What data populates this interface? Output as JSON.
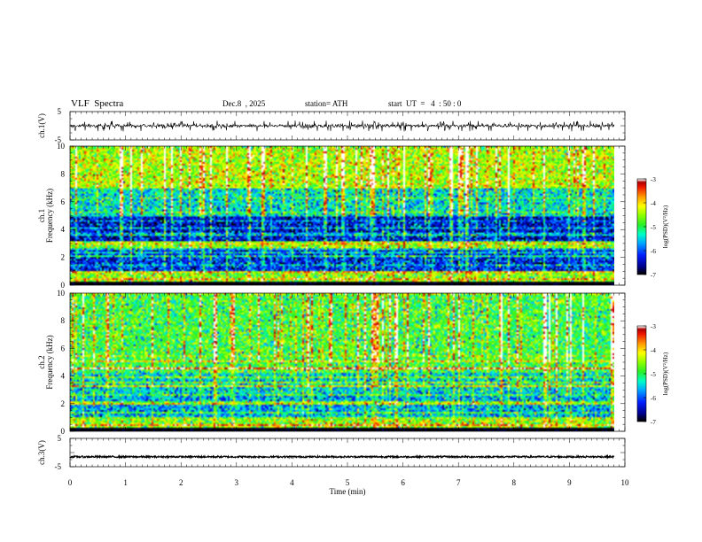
{
  "header": {
    "title": "VLF  Spectra",
    "date": "Dec.8  , 2025",
    "station": "station= ATH",
    "start_ut": "start  UT  =   4  : 50 : 0"
  },
  "chart_data": [
    {
      "type": "line",
      "panel": "ch1-waveform",
      "ylabel": "ch.1(V)",
      "ylim": [
        -5,
        5
      ],
      "yticks": [
        "5",
        "-5"
      ],
      "xlim": [
        0,
        10
      ],
      "series_description_values": {
        "baseline": 0,
        "typical_range": [
          -0.8,
          0.8
        ],
        "spikes_max": 1.8,
        "spikes_min": -2.0
      }
    },
    {
      "type": "heatmap",
      "panel": "ch1-spectrogram",
      "ylabel": "ch.1\nFrequency  (kHz)",
      "ylabel_lines": [
        "ch.1",
        "Frequency  (kHz)"
      ],
      "ylim": [
        0,
        10
      ],
      "yticks": [
        "0",
        "2",
        "4",
        "6",
        "8",
        "10"
      ],
      "xlim": [
        0,
        10
      ],
      "colorbar": {
        "label": "log(PSD)(V²/Hz)",
        "ticks": [
          "-3",
          "-4",
          "-5",
          "-6",
          "-7"
        ],
        "range": [
          -7,
          -3
        ]
      },
      "bands_kHz": [
        [
          0.9,
          2.6,
          -6.2
        ],
        [
          3.2,
          5.0,
          -6.4
        ],
        [
          5.0,
          7.0,
          -5.4
        ],
        [
          7.0,
          10.0,
          -4.4
        ]
      ]
    },
    {
      "type": "heatmap",
      "panel": "ch2-spectrogram",
      "ylabel": "ch.2\nFrequency  (kHz)",
      "ylabel_lines": [
        "ch.2",
        "Frequency  (kHz)"
      ],
      "ylim": [
        0,
        10
      ],
      "yticks": [
        "0",
        "2",
        "4",
        "6",
        "8",
        "10"
      ],
      "xlim": [
        0,
        10
      ],
      "colorbar": {
        "label": "log(PSD)(V²/Hz)",
        "ticks": [
          "-3",
          "-4",
          "-5",
          "-6",
          "-7"
        ],
        "range": [
          -7,
          -3
        ]
      },
      "bands_kHz": [
        [
          0.9,
          2.6,
          -5.7
        ],
        [
          2.6,
          4.4,
          -5.5
        ],
        [
          4.4,
          10.0,
          -4.9
        ]
      ]
    },
    {
      "type": "line",
      "panel": "ch3-waveform",
      "ylabel": "ch.3(V)",
      "ylim": [
        -5,
        5
      ],
      "yticks": [
        "5",
        "-5"
      ],
      "xlim": [
        0,
        10
      ],
      "xlabel": "Time  (min)",
      "xticks": [
        "0",
        "1",
        "2",
        "3",
        "4",
        "5",
        "6",
        "7",
        "8",
        "9",
        "10"
      ],
      "series_description_values": {
        "baseline": -1.5,
        "typical_range": [
          -1.8,
          -1.2
        ]
      }
    }
  ],
  "colors": {
    "axis": "#000000",
    "colormap": [
      "#000000",
      "#0000b0",
      "#0040ff",
      "#00c0ff",
      "#00ffa0",
      "#40ff00",
      "#c8ff00",
      "#ffff00",
      "#ffa000",
      "#ff2000",
      "#c00000",
      "#ffffff"
    ]
  }
}
